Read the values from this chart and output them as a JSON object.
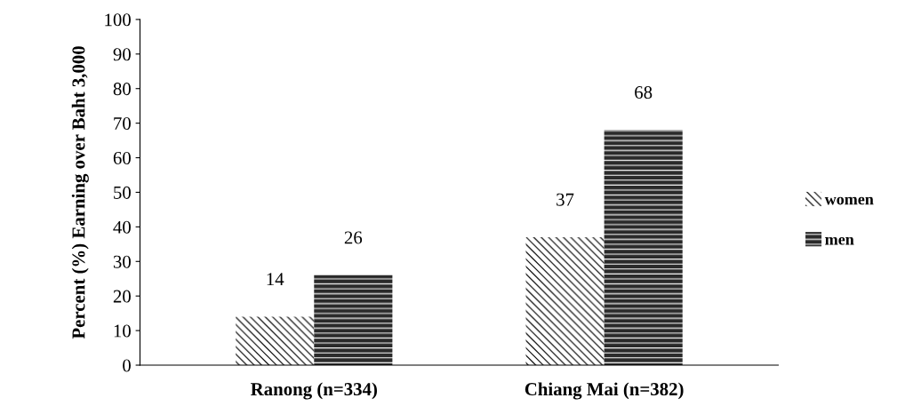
{
  "chart_data": {
    "type": "bar",
    "ylabel": "Percent (%) Earning over Baht 3,000",
    "categories": [
      "Ranong (n=334)",
      "Chiang Mai (n=382)"
    ],
    "series": [
      {
        "name": "women",
        "color": "#ffffff",
        "values": [
          14,
          37
        ]
      },
      {
        "name": "men",
        "color": "#2a2a2a",
        "values": [
          26,
          68
        ]
      }
    ],
    "ylim": [
      0,
      100
    ],
    "yticks": [
      0,
      10,
      20,
      30,
      40,
      50,
      60,
      70,
      80,
      90,
      100
    ],
    "data_labels": true,
    "grid": false,
    "legend": "right"
  }
}
